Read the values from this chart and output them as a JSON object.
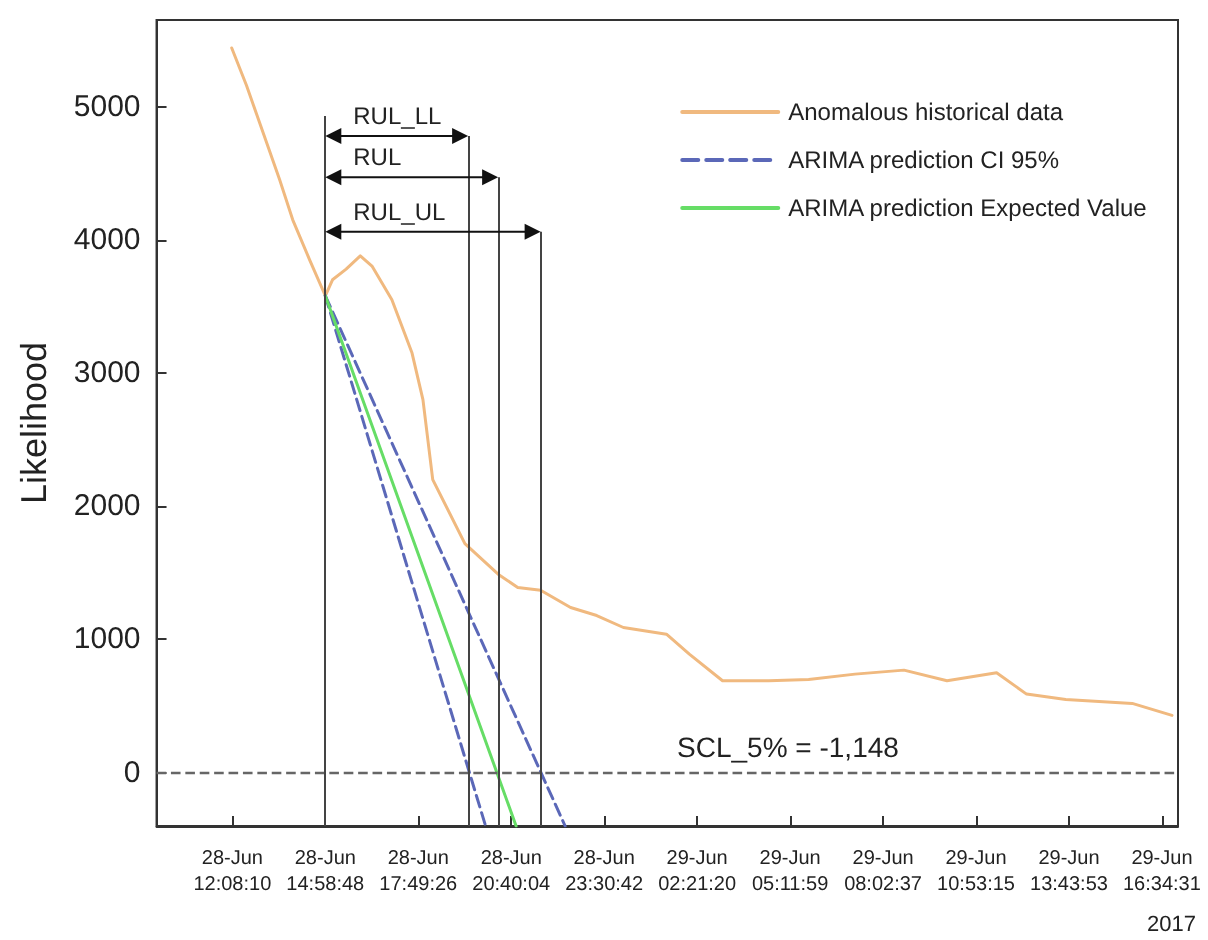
{
  "chart_data": {
    "type": "line",
    "ylabel": "Likelihood",
    "xlim": [
      "2017-06-28T09:49",
      "2017-06-29T17:04"
    ],
    "ylim": [
      -400,
      5650
    ],
    "xticks": [
      {
        "value": "2017-06-28T12:08:10",
        "label": "28-Jun\n12:08:10"
      },
      {
        "value": "2017-06-28T14:58:48",
        "label": "28-Jun\n14:58:48"
      },
      {
        "value": "2017-06-28T17:49:26",
        "label": "28-Jun\n17:49:26"
      },
      {
        "value": "2017-06-28T20:40:04",
        "label": "28-Jun\n20:40:04"
      },
      {
        "value": "2017-06-28T23:30:42",
        "label": "28-Jun\n23:30:42"
      },
      {
        "value": "2017-06-29T02:21:20",
        "label": "29-Jun\n02:21:20"
      },
      {
        "value": "2017-06-29T05:11:59",
        "label": "29-Jun\n05:11:59"
      },
      {
        "value": "2017-06-29T08:02:37",
        "label": "29-Jun\n08:02:37"
      },
      {
        "value": "2017-06-29T10:53:15",
        "label": "29-Jun\n10:53:15"
      },
      {
        "value": "2017-06-29T13:43:53",
        "label": "29-Jun\n13:43:53"
      },
      {
        "value": "2017-06-29T16:34:31",
        "label": "29-Jun\n16:34:31"
      }
    ],
    "yticks": [
      0,
      1000,
      2000,
      3000,
      4000,
      5000
    ],
    "grid": false,
    "legend": "top right",
    "marker": "none",
    "series": [
      {
        "name": "Anomalous historical data",
        "color": "#f0b97f",
        "line_style": "solid",
        "x": [
          "2017-06-28T12:07",
          "2017-06-28T12:34",
          "2017-06-28T13:05",
          "2017-06-28T13:35",
          "2017-06-28T13:59",
          "2017-06-28T14:30",
          "2017-06-28T14:58:48",
          "2017-06-28T15:12",
          "2017-06-28T15:37",
          "2017-06-28T16:03",
          "2017-06-28T16:25",
          "2017-06-28T17:01",
          "2017-06-28T17:38",
          "2017-06-28T17:58",
          "2017-06-28T18:16",
          "2017-06-28T19:15",
          "2017-06-28T20:16",
          "2017-06-28T20:52",
          "2017-06-28T21:34",
          "2017-06-28T22:29",
          "2017-06-28T23:17",
          "2017-06-29T00:06",
          "2017-06-29T01:25",
          "2017-06-29T02:07",
          "2017-06-29T03:08",
          "2017-06-29T04:33",
          "2017-06-29T05:46",
          "2017-06-29T07:11",
          "2017-06-29T08:41",
          "2017-06-29T10:00",
          "2017-06-29T11:31",
          "2017-06-29T12:26",
          "2017-06-29T13:38",
          "2017-06-29T15:40",
          "2017-06-29T16:53"
        ],
        "values": [
          5440,
          5160,
          4800,
          4450,
          4150,
          3850,
          3580,
          3700,
          3780,
          3880,
          3800,
          3550,
          3150,
          2800,
          2200,
          1720,
          1490,
          1390,
          1370,
          1240,
          1180,
          1090,
          1040,
          890,
          690,
          690,
          700,
          740,
          770,
          690,
          750,
          590,
          550,
          520,
          430
        ]
      },
      {
        "name": "ARIMA prediction CI 95%",
        "color": "#5b68b8",
        "line_style": "dashed",
        "x": [
          "2017-06-28T14:58:48",
          "2017-06-28T19:53"
        ],
        "values": [
          3580,
          -400
        ]
      },
      {
        "color": "#5b68b8",
        "line_style": "dashed",
        "x": [
          "2017-06-28T14:58:48",
          "2017-06-28T22:19"
        ],
        "values": [
          3580,
          -400
        ]
      },
      {
        "name": "ARIMA prediction Expected Value",
        "color": "#66dd66",
        "line_style": "solid",
        "x": [
          "2017-06-28T14:58:48",
          "2017-06-28T20:49"
        ],
        "values": [
          3580,
          -400
        ]
      }
    ],
    "ref_lines": [
      {
        "axis": "y",
        "value": 0,
        "color": "#666666",
        "line_style": "dashed"
      },
      {
        "axis": "x",
        "value": "2017-06-28T14:58:48",
        "color": "#444444",
        "line_style": "solid"
      },
      {
        "axis": "x",
        "value": "2017-06-28T19:21",
        "color": "#444444",
        "line_style": "solid"
      },
      {
        "axis": "x",
        "value": "2017-06-28T20:16",
        "color": "#444444",
        "line_style": "solid"
      },
      {
        "axis": "x",
        "value": "2017-06-28T21:34",
        "color": "#444444",
        "line_style": "solid"
      }
    ],
    "annotations": [
      {
        "text": "RUL_LL",
        "x": "2017-06-28T19:21",
        "y": 4780
      },
      {
        "text": "RUL",
        "x": "2017-06-28T20:16",
        "y": 4470
      },
      {
        "text": "RUL_UL",
        "x": "2017-06-28T21:34",
        "y": 4060
      },
      {
        "text": "SCL_5% = -1,148",
        "x": "2017-06-29T05:08",
        "y": 0
      },
      "2017"
    ]
  }
}
